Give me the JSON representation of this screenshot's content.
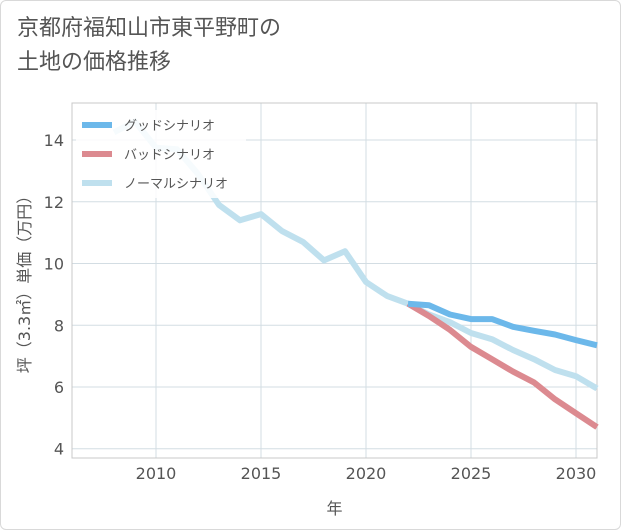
{
  "title": "京都府福知山市東平野町の\n土地の価格推移",
  "chart_data": {
    "type": "line",
    "xlabel": "年",
    "ylabel": "坪（3.3㎡）単価（万円）",
    "xlim": [
      2006,
      2031
    ],
    "ylim": [
      3.7,
      15.2
    ],
    "xticks": [
      2010,
      2015,
      2020,
      2025,
      2030
    ],
    "yticks": [
      4,
      6,
      8,
      10,
      12,
      14
    ],
    "grid": true,
    "legend_position": "top-left",
    "series": [
      {
        "name": "グッドシナリオ",
        "color": "#6cb8ea",
        "x": [
          2022,
          2023,
          2024,
          2025,
          2026,
          2027,
          2028,
          2029,
          2030,
          2031
        ],
        "y": [
          8.7,
          8.65,
          8.35,
          8.2,
          8.2,
          7.95,
          7.82,
          7.7,
          7.52,
          7.35
        ]
      },
      {
        "name": "バッドシナリオ",
        "color": "#dc8a90",
        "x": [
          2022,
          2023,
          2024,
          2025,
          2026,
          2027,
          2028,
          2029,
          2030,
          2031
        ],
        "y": [
          8.7,
          8.3,
          7.85,
          7.3,
          6.9,
          6.5,
          6.15,
          5.6,
          5.15,
          4.7
        ]
      },
      {
        "name": "ノーマルシナリオ",
        "color": "#bfe0ee",
        "x": [
          2008,
          2009,
          2010,
          2011,
          2012,
          2013,
          2014,
          2015,
          2016,
          2017,
          2018,
          2019,
          2020,
          2021,
          2022,
          2023,
          2024,
          2025,
          2026,
          2027,
          2028,
          2029,
          2030,
          2031
        ],
        "y": [
          14.25,
          14.6,
          13.75,
          13.7,
          12.9,
          11.9,
          11.4,
          11.6,
          11.05,
          10.7,
          10.1,
          10.4,
          9.4,
          8.95,
          8.7,
          8.35,
          8.1,
          7.75,
          7.55,
          7.2,
          6.9,
          6.55,
          6.35,
          5.95
        ]
      }
    ]
  }
}
